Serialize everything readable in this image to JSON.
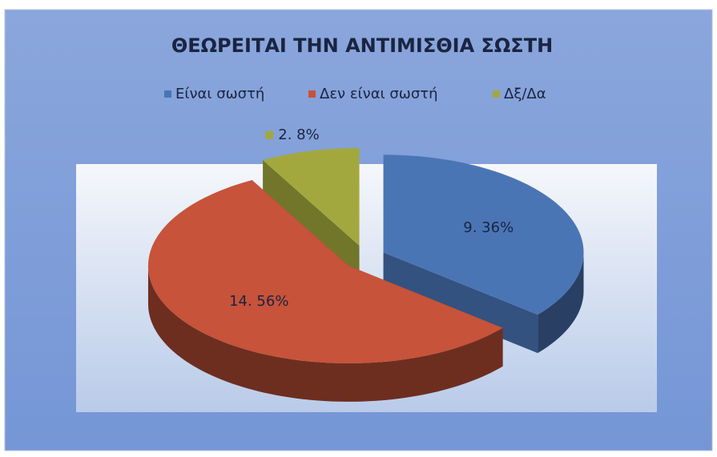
{
  "chart_data": {
    "type": "pie",
    "title": "ΘΕΩΡΕΙΤΑΙ ΤΗΝ ΑΝΤΙΜΙΣΘΙΑ ΣΩΣΤΗ",
    "categories": [
      "Είναι σωστή",
      "Δεν είναι σωστή",
      "Δξ/Δα"
    ],
    "values": [
      36,
      56,
      8
    ],
    "value_labels": [
      "9. 36%",
      "14. 56%",
      "2. 8%"
    ],
    "colors": [
      "#4a75b5",
      "#c6533a",
      "#a3a83e"
    ],
    "legend": "top"
  }
}
